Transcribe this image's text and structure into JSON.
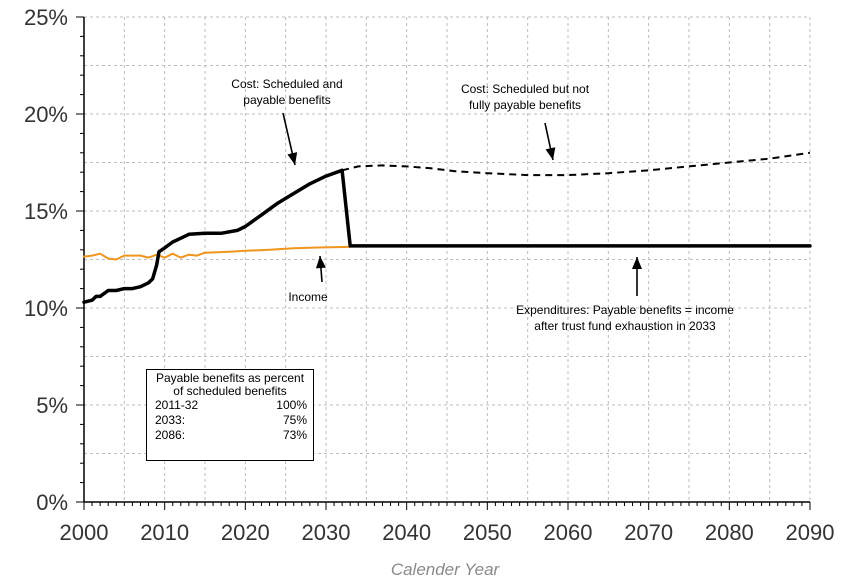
{
  "chart_data": {
    "type": "line",
    "title": "",
    "xlabel": "Calender Year",
    "ylabel": "",
    "xlim": [
      2000,
      2090
    ],
    "ylim": [
      0,
      25
    ],
    "x_ticks": [
      "2000",
      "2010",
      "2020",
      "2030",
      "2040",
      "2050",
      "2060",
      "2070",
      "2080",
      "2090"
    ],
    "y_ticks": [
      "0%",
      "5%",
      "10%",
      "15%",
      "20%",
      "25%"
    ],
    "grid": true,
    "series": [
      {
        "key": "cost_payable",
        "color": "#000000",
        "style": "solid-thick",
        "points": [
          [
            2000,
            10.3
          ],
          [
            2001,
            10.4
          ],
          [
            2001.5,
            10.6
          ],
          [
            2002,
            10.6
          ],
          [
            2003,
            10.9
          ],
          [
            2004,
            10.9
          ],
          [
            2005,
            11.0
          ],
          [
            2006,
            11.0
          ],
          [
            2007,
            11.1
          ],
          [
            2008,
            11.3
          ],
          [
            2008.5,
            11.5
          ],
          [
            2009,
            12.2
          ],
          [
            2009.3,
            12.9
          ],
          [
            2010,
            13.1
          ],
          [
            2011,
            13.4
          ],
          [
            2012,
            13.6
          ],
          [
            2013,
            13.8
          ],
          [
            2015,
            13.85
          ],
          [
            2017,
            13.85
          ],
          [
            2019,
            14.0
          ],
          [
            2020,
            14.2
          ],
          [
            2022,
            14.8
          ],
          [
            2024,
            15.4
          ],
          [
            2026,
            15.9
          ],
          [
            2028,
            16.4
          ],
          [
            2030,
            16.8
          ],
          [
            2032,
            17.1
          ],
          [
            2033,
            13.2
          ],
          [
            2040,
            13.2
          ],
          [
            2050,
            13.2
          ],
          [
            2060,
            13.2
          ],
          [
            2070,
            13.2
          ],
          [
            2080,
            13.2
          ],
          [
            2090,
            13.2
          ]
        ]
      },
      {
        "key": "cost_scheduled_unpayable",
        "color": "#000000",
        "style": "dashed",
        "points": [
          [
            2032,
            17.1
          ],
          [
            2034,
            17.3
          ],
          [
            2037,
            17.35
          ],
          [
            2040,
            17.3
          ],
          [
            2043,
            17.2
          ],
          [
            2046,
            17.05
          ],
          [
            2050,
            16.95
          ],
          [
            2055,
            16.85
          ],
          [
            2060,
            16.85
          ],
          [
            2065,
            16.95
          ],
          [
            2070,
            17.1
          ],
          [
            2075,
            17.3
          ],
          [
            2080,
            17.5
          ],
          [
            2085,
            17.7
          ],
          [
            2090,
            18.0
          ]
        ]
      },
      {
        "key": "income",
        "color": "#f0951e",
        "style": "solid-thin",
        "points": [
          [
            2000,
            12.65
          ],
          [
            2001,
            12.7
          ],
          [
            2002,
            12.8
          ],
          [
            2003,
            12.55
          ],
          [
            2004,
            12.5
          ],
          [
            2005,
            12.7
          ],
          [
            2006,
            12.7
          ],
          [
            2007,
            12.7
          ],
          [
            2008,
            12.6
          ],
          [
            2009,
            12.75
          ],
          [
            2010,
            12.6
          ],
          [
            2011,
            12.8
          ],
          [
            2012,
            12.6
          ],
          [
            2013,
            12.75
          ],
          [
            2014,
            12.7
          ],
          [
            2015,
            12.85
          ],
          [
            2018,
            12.9
          ],
          [
            2020,
            12.95
          ],
          [
            2023,
            13.0
          ],
          [
            2026,
            13.08
          ],
          [
            2029,
            13.12
          ],
          [
            2033,
            13.15
          ]
        ]
      }
    ],
    "annotations": [
      {
        "key": "cost_sched",
        "lines": [
          "Cost: Scheduled and",
          "payable benefits"
        ]
      },
      {
        "key": "cost_unpay",
        "lines": [
          "Cost: Scheduled but not",
          "fully payable benefits"
        ]
      },
      {
        "key": "income",
        "lines": [
          "Income"
        ]
      },
      {
        "key": "expend",
        "lines": [
          "Expenditures: Payable benefits = income",
          "after trust fund exhaustion in 2033"
        ]
      }
    ],
    "legend_box": {
      "title_lines": [
        "Payable benefits as percent",
        "of scheduled benefits"
      ],
      "rows": [
        {
          "period": "2011-32",
          "value": "100%"
        },
        {
          "period": "2033:",
          "value": "75%"
        },
        {
          "period": "2086:",
          "value": "73%"
        }
      ]
    }
  }
}
